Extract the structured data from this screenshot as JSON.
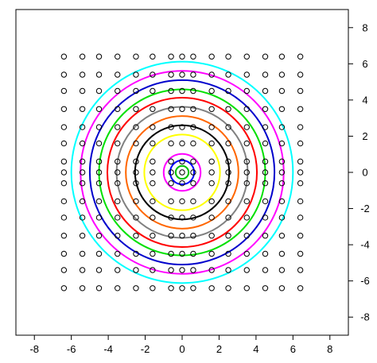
{
  "chart_data": {
    "type": "scatter",
    "title": "",
    "xlabel": "",
    "ylabel": "",
    "xlim": [
      -9,
      9
    ],
    "ylim": [
      -9,
      9
    ],
    "x_ticks": [
      -8,
      -6,
      -4,
      -2,
      0,
      2,
      4,
      6,
      8
    ],
    "y_ticks": [
      -8,
      -6,
      -4,
      -2,
      0,
      2,
      4,
      6,
      8
    ],
    "x_tick_labels": [
      "-8",
      "-6",
      "-4",
      "-2",
      "0",
      "2",
      "4",
      "6",
      "8"
    ],
    "y_tick_labels": [
      "-8",
      "-6",
      "-4",
      "-2",
      "0",
      "2",
      "4",
      "6",
      "8"
    ],
    "y_axis_side": "right",
    "grid": false,
    "legend": "none",
    "point_grid": {
      "x": [
        -6.4,
        -5.4,
        -4.5,
        -3.5,
        -2.5,
        -1.6,
        -0.6,
        0.0,
        0.6,
        1.6,
        2.5,
        3.5,
        4.5,
        5.4,
        6.4
      ],
      "y": [
        -6.4,
        -5.4,
        -4.5,
        -3.5,
        -2.5,
        -1.6,
        -0.6,
        0.0,
        0.6,
        1.6,
        2.5,
        3.5,
        4.5,
        5.4,
        6.4
      ],
      "marker": "open-circle",
      "color": "#000000"
    },
    "circles": [
      {
        "radius": 0.35,
        "color": "#00c000"
      },
      {
        "radius": 0.65,
        "color": "#0000ff"
      },
      {
        "radius": 1.0,
        "color": "#ff00ff"
      },
      {
        "radius": 2.05,
        "color": "#ffff00"
      },
      {
        "radius": 2.55,
        "color": "#000000"
      },
      {
        "radius": 3.05,
        "color": "#ff6600"
      },
      {
        "radius": 3.55,
        "color": "#808080"
      },
      {
        "radius": 4.05,
        "color": "#ff0000"
      },
      {
        "radius": 4.5,
        "color": "#00e000"
      },
      {
        "radius": 5.0,
        "color": "#0000cc"
      },
      {
        "radius": 5.5,
        "color": "#ff00ff"
      },
      {
        "radius": 6.0,
        "color": "#00ffff"
      }
    ]
  }
}
